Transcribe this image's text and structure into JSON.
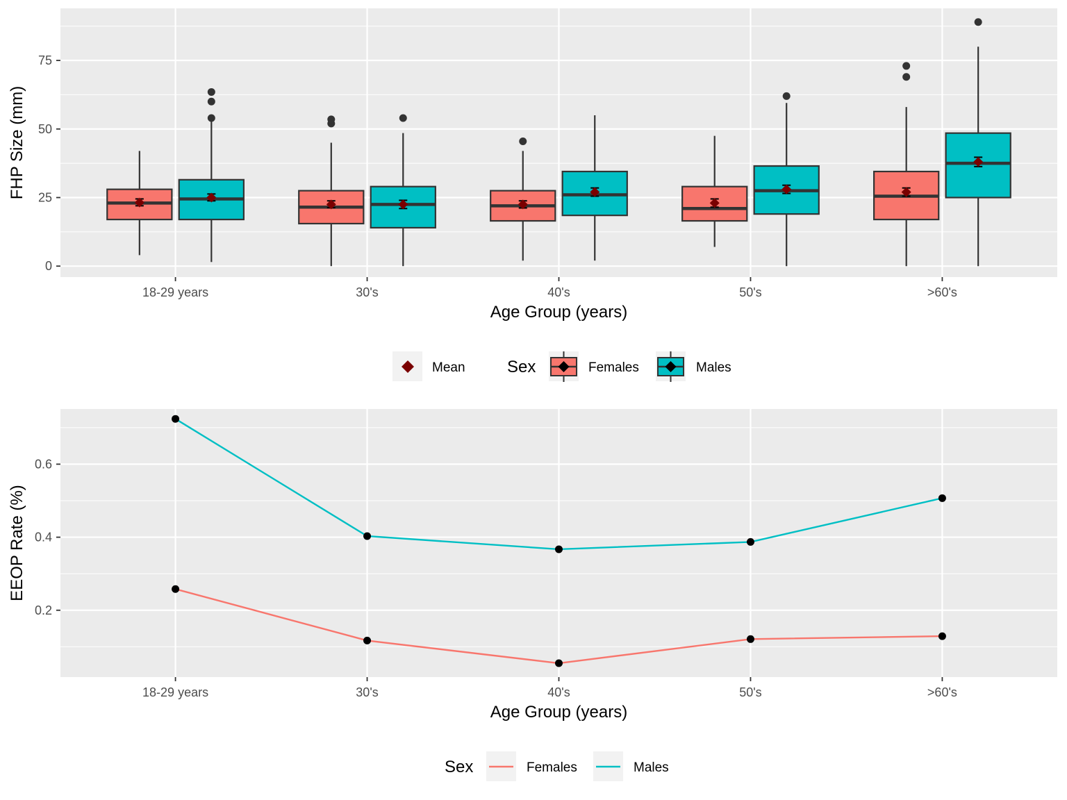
{
  "chart_data": [
    {
      "type": "box",
      "xlabel": "Age Group (years)",
      "ylabel": "FHP Size (mm)",
      "categories": [
        "18-29 years",
        "30's",
        "40's",
        "50's",
        ">60's"
      ],
      "yticks": [
        0,
        25,
        50,
        75
      ],
      "ylim": [
        -4,
        94
      ],
      "grid": true,
      "legend": {
        "position": "bottom",
        "mean_label": "Mean",
        "title": "Sex",
        "entries": [
          "Females",
          "Males"
        ]
      },
      "series": [
        {
          "name": "Females",
          "color": "#F8766D",
          "boxes": [
            {
              "lower_whisker": 4,
              "q1": 17,
              "median": 23,
              "q3": 28,
              "upper_whisker": 42,
              "mean": 23.2,
              "mean_ci": [
                22,
                24.5
              ],
              "outliers": []
            },
            {
              "lower_whisker": 0,
              "q1": 15.5,
              "median": 21.5,
              "q3": 27.5,
              "upper_whisker": 45,
              "mean": 22.5,
              "mean_ci": [
                21.3,
                23.8
              ],
              "outliers": [
                52,
                53.5
              ]
            },
            {
              "lower_whisker": 2,
              "q1": 16.5,
              "median": 22,
              "q3": 27.5,
              "upper_whisker": 42,
              "mean": 22.5,
              "mean_ci": [
                21.2,
                23.8
              ],
              "outliers": [
                45.5
              ]
            },
            {
              "lower_whisker": 7,
              "q1": 16.5,
              "median": 21,
              "q3": 29,
              "upper_whisker": 47.5,
              "mean": 23,
              "mean_ci": [
                21.5,
                24.5
              ],
              "outliers": []
            },
            {
              "lower_whisker": 0,
              "q1": 17,
              "median": 25.5,
              "q3": 34.5,
              "upper_whisker": 58,
              "mean": 27,
              "mean_ci": [
                25.5,
                28.5
              ],
              "outliers": [
                69,
                73
              ]
            }
          ]
        },
        {
          "name": "Males",
          "color": "#00BFC4",
          "boxes": [
            {
              "lower_whisker": 1.5,
              "q1": 17,
              "median": 24.5,
              "q3": 31.5,
              "upper_whisker": 53.5,
              "mean": 25,
              "mean_ci": [
                23.8,
                26.3
              ],
              "outliers": [
                54,
                60,
                63.5
              ]
            },
            {
              "lower_whisker": 0,
              "q1": 14,
              "median": 22.5,
              "q3": 29,
              "upper_whisker": 48.5,
              "mean": 22.5,
              "mean_ci": [
                21,
                24
              ],
              "outliers": [
                54
              ]
            },
            {
              "lower_whisker": 2,
              "q1": 18.5,
              "median": 26,
              "q3": 34.5,
              "upper_whisker": 55,
              "mean": 27,
              "mean_ci": [
                25.5,
                28.5
              ],
              "outliers": []
            },
            {
              "lower_whisker": 0,
              "q1": 19,
              "median": 27.5,
              "q3": 36.5,
              "upper_whisker": 59.5,
              "mean": 28,
              "mean_ci": [
                26.5,
                29.5
              ],
              "outliers": [
                62
              ]
            },
            {
              "lower_whisker": 0,
              "q1": 25,
              "median": 37.5,
              "q3": 48.5,
              "upper_whisker": 80,
              "mean": 38,
              "mean_ci": [
                36.3,
                39.7
              ],
              "outliers": [
                89
              ]
            }
          ]
        }
      ]
    },
    {
      "type": "line",
      "xlabel": "Age Group (years)",
      "ylabel": "EEOP Rate (%)",
      "categories": [
        "18-29 years",
        "30's",
        "40's",
        "50's",
        ">60's"
      ],
      "yticks": [
        "0.2",
        "0.4",
        "0.6"
      ],
      "ylim": [
        0.017,
        0.751
      ],
      "grid": true,
      "legend": {
        "position": "bottom",
        "title": "Sex",
        "entries": [
          "Females",
          "Males"
        ]
      },
      "series": [
        {
          "name": "Females",
          "color": "#F8766D",
          "values": [
            0.258,
            0.117,
            0.055,
            0.121,
            0.129
          ]
        },
        {
          "name": "Males",
          "color": "#00BFC4",
          "values": [
            0.724,
            0.403,
            0.367,
            0.387,
            0.507
          ]
        }
      ]
    }
  ]
}
